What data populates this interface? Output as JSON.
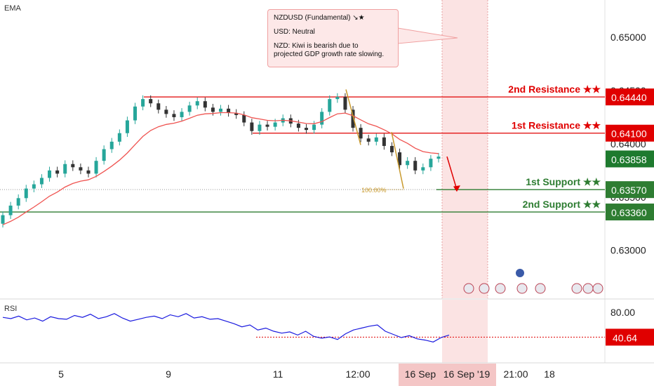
{
  "indicators": {
    "ema_label": "EMA",
    "rsi_label": "RSI"
  },
  "info_box": {
    "title": "NZDUSD (Fundamental) ↘★",
    "usd": "USD: Neutral",
    "nzd_line1": "NZD: Kiwi is bearish due to",
    "nzd_line2": "projected GDP growth rate slowing."
  },
  "colors": {
    "up_candle": "#26a69a",
    "down_candle": "#333333",
    "ema_line": "#ef5350",
    "resistance": "#e00000",
    "support": "#2e7d32",
    "rsi_line": "#1a1adf",
    "projection": "#c99a2e",
    "highlight_zone": "#fbe3e3",
    "current_price": "#1e7a2e"
  },
  "chart_data": {
    "type": "candlestick",
    "yaxis": {
      "ylim": [
        0.6255,
        0.6535
      ],
      "ticks": [
        0.63,
        0.635,
        0.64,
        0.645,
        0.65
      ],
      "tick_labels": [
        "0.63000",
        "0.63500",
        "0.64000",
        "0.64500",
        "0.65000"
      ]
    },
    "xaxis": {
      "tick_labels": [
        "5",
        "9",
        "11",
        "12:00",
        "16 Sep '19",
        "16 Sep '19",
        "21:00",
        "18"
      ]
    },
    "levels": [
      {
        "label": "2nd Resistance ★★",
        "value": "0.64440",
        "price": 0.6444,
        "kind": "resistance"
      },
      {
        "label": "1st Resistance ★★",
        "value": "0.64100",
        "price": 0.641,
        "kind": "resistance"
      },
      {
        "label": "1st Support ★★",
        "value": "0.63570",
        "price": 0.6357,
        "kind": "support"
      },
      {
        "label": "2nd Support ★★",
        "value": "0.63360",
        "price": 0.6336,
        "kind": "support"
      }
    ],
    "current_price": "0.63858",
    "fib_label": "100.00%",
    "rsi": {
      "ylim": [
        0,
        100
      ],
      "tick_labels": [
        "80.00"
      ],
      "current": "40.64",
      "current_value": 40.64
    },
    "series": [
      {
        "name": "close",
        "values": [
          0.6333,
          0.6342,
          0.6349,
          0.6358,
          0.6362,
          0.6368,
          0.6375,
          0.6372,
          0.6381,
          0.6378,
          0.6375,
          0.6372,
          0.6384,
          0.6395,
          0.6402,
          0.641,
          0.6422,
          0.6435,
          0.6442,
          0.6438,
          0.6432,
          0.6428,
          0.6425,
          0.643,
          0.6436,
          0.644,
          0.6434,
          0.643,
          0.6433,
          0.6429,
          0.6427,
          0.642,
          0.6412,
          0.6418,
          0.6416,
          0.642,
          0.6424,
          0.6419,
          0.6415,
          0.6413,
          0.6418,
          0.643,
          0.6442,
          0.6444,
          0.6432,
          0.6415,
          0.6405,
          0.6402,
          0.6406,
          0.6398,
          0.6392,
          0.638,
          0.6384,
          0.6375,
          0.6378,
          0.6386,
          0.6388
        ]
      }
    ]
  }
}
